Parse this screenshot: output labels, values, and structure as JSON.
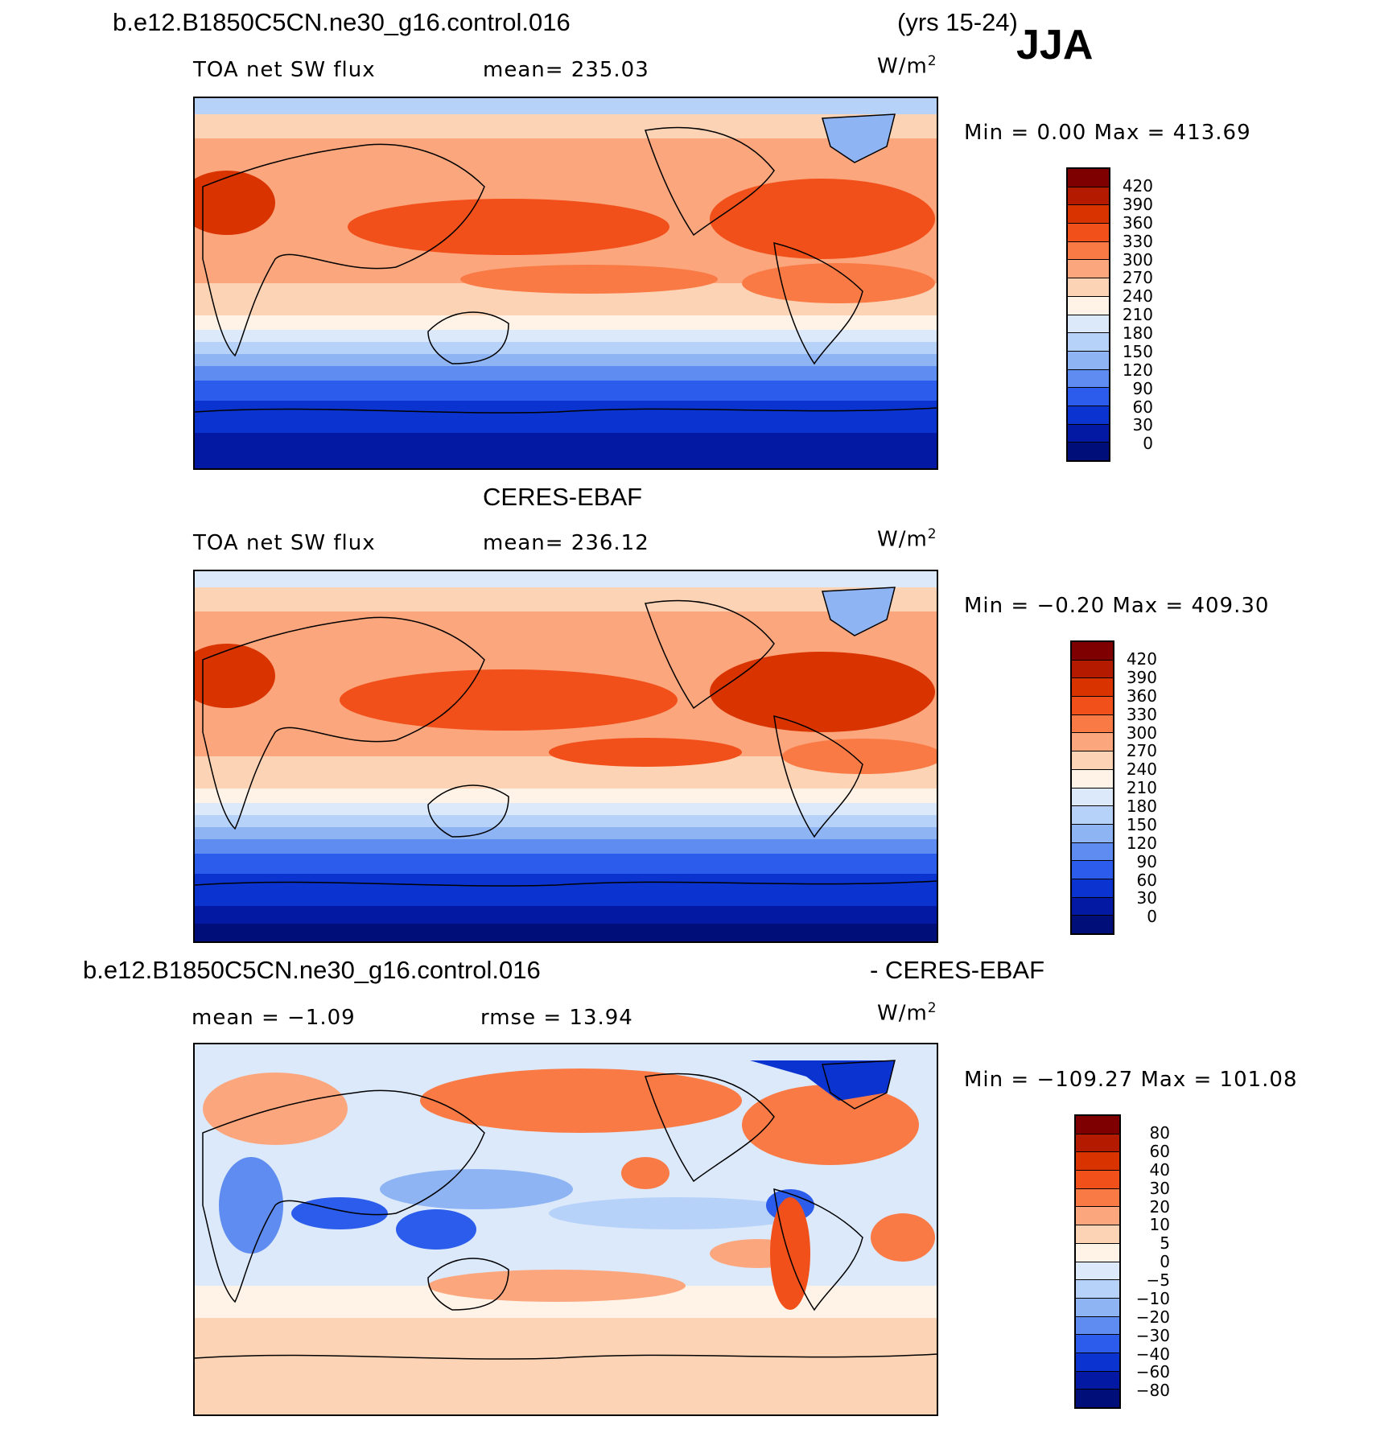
{
  "header": {
    "case_name": "b.e12.B1850C5CN.ne30_g16.control.016",
    "years": "(yrs 15-24)",
    "season": "JJA"
  },
  "panels": [
    {
      "title": "",
      "field": "TOA net SW flux",
      "stat": "mean= 235.03",
      "units": "W/m",
      "units_sup": "2",
      "minmax": "Min =    0.00 Max = 413.69",
      "colorbar": {
        "labels": [
          "420",
          "390",
          "360",
          "330",
          "300",
          "270",
          "240",
          "210",
          "180",
          "150",
          "120",
          "90",
          "60",
          "30",
          "0"
        ],
        "colors": [
          "#7f0000",
          "#b31a00",
          "#d93300",
          "#f2501a",
          "#fa7a45",
          "#fca67d",
          "#fdd3b5",
          "#fff2e6",
          "#dbe9fb",
          "#b7d2f8",
          "#8fb4f4",
          "#5f8cf0",
          "#2b5ceb",
          "#0b33cf",
          "#0419a3",
          "#000e7a"
        ]
      }
    },
    {
      "title": "CERES-EBAF",
      "field": "TOA net SW flux",
      "stat": "mean= 236.12",
      "units": "W/m",
      "units_sup": "2",
      "minmax": "Min =  −0.20 Max = 409.30",
      "colorbar": {
        "labels": [
          "420",
          "390",
          "360",
          "330",
          "300",
          "270",
          "240",
          "210",
          "180",
          "150",
          "120",
          "90",
          "60",
          "30",
          "0"
        ],
        "colors": [
          "#7f0000",
          "#b31a00",
          "#d93300",
          "#f2501a",
          "#fa7a45",
          "#fca67d",
          "#fdd3b5",
          "#fff2e6",
          "#dbe9fb",
          "#b7d2f8",
          "#8fb4f4",
          "#5f8cf0",
          "#2b5ceb",
          "#0b33cf",
          "#0419a3",
          "#000e7a"
        ]
      }
    },
    {
      "title_left": "b.e12.B1850C5CN.ne30_g16.control.016",
      "title_right": "- CERES-EBAF",
      "stat_left": "mean =   −1.09",
      "stat_right": "rmse =   13.94",
      "units": "W/m",
      "units_sup": "2",
      "minmax": "Min = −109.27 Max = 101.08",
      "colorbar": {
        "labels": [
          "80",
          "60",
          "40",
          "30",
          "20",
          "10",
          "5",
          "0",
          "−5",
          "−10",
          "−20",
          "−30",
          "−40",
          "−60",
          "−80"
        ],
        "colors": [
          "#7f0000",
          "#b31a00",
          "#d93300",
          "#f2501a",
          "#fa7a45",
          "#fca67d",
          "#fdd3b5",
          "#fff2e6",
          "#dbe9fb",
          "#b7d2f8",
          "#8fb4f4",
          "#5f8cf0",
          "#2b5ceb",
          "#0b33cf",
          "#0419a3",
          "#000e7a"
        ]
      }
    }
  ]
}
